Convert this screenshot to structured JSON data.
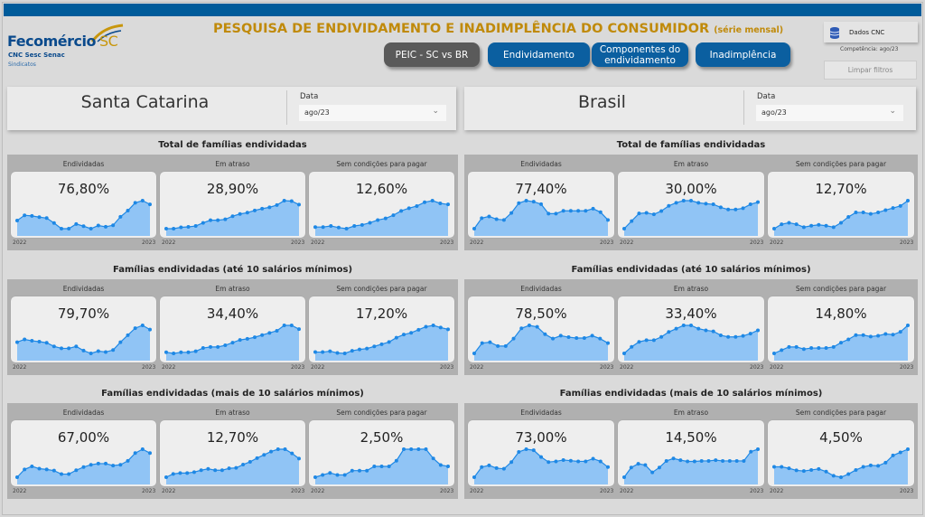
{
  "header": {
    "logo_brand": "Fecomércio",
    "logo_sc": "SC",
    "logo_sub": "CNC Sesc Senac",
    "logo_sind": "Sindicatos",
    "title": "PESQUISA DE ENDIVIDAMENTO E INADIMPLÊNCIA DO CONSUMIDOR",
    "title_suffix": "(série mensal)",
    "nav": [
      {
        "label": "PEIC - SC vs BR",
        "active": true
      },
      {
        "label": "Endividamento"
      },
      {
        "label": "Componentes do endividamento"
      },
      {
        "label": "Inadimplência"
      }
    ],
    "dados_label": "Dados CNC",
    "competencia_label": "Competência:",
    "competencia_value": "ago/23",
    "clear_label": "Limpar filtros"
  },
  "colors": {
    "accent": "#005b9a",
    "gold": "#c08a0a",
    "area": "#90c4f5",
    "line": "#1e88e5"
  },
  "panels": [
    {
      "region": "Santa Catarina",
      "date_label": "Data",
      "date_value": "ago/23",
      "sections": [
        {
          "title": "Total de famílias endividadas",
          "cards": [
            {
              "label": "Endividadas",
              "value": "76,80%",
              "start": "2022",
              "end": "2023",
              "trend": [
                38,
                55,
                53,
                49,
                46,
                30,
                12,
                12,
                27,
                20,
                12,
                22,
                18,
                23,
                50,
                70,
                95,
                102,
                90
              ]
            },
            {
              "label": "Em atraso",
              "value": "28,90%",
              "start": "2022",
              "end": "2023",
              "trend": [
                5,
                5,
                8,
                9,
                11,
                18,
                24,
                24,
                26,
                33,
                38,
                41,
                46,
                50,
                53,
                58,
                68,
                67,
                59
              ]
            },
            {
              "label": "Sem condições para pagar",
              "value": "12,60%",
              "start": "2022",
              "end": "2023",
              "trend": [
                20,
                20,
                22,
                19,
                17,
                22,
                24,
                28,
                33,
                36,
                42,
                50,
                55,
                59,
                66,
                69,
                64,
                62
              ]
            }
          ]
        },
        {
          "title": "Famílias endividadas (até 10 salários mínimos)",
          "cards": [
            {
              "label": "Endividadas",
              "value": "79,70%",
              "start": "2022",
              "end": "2023",
              "trend": [
                50,
                60,
                55,
                52,
                48,
                35,
                28,
                28,
                35,
                20,
                10,
                18,
                15,
                22,
                50,
                75,
                100,
                110,
                95
              ]
            },
            {
              "label": "Em atraso",
              "value": "34,40%",
              "start": "2022",
              "end": "2023",
              "trend": [
                12,
                10,
                12,
                12,
                14,
                20,
                22,
                22,
                25,
                30,
                35,
                37,
                40,
                44,
                48,
                52,
                62,
                62,
                55
              ]
            },
            {
              "label": "Sem condições para pagar",
              "value": "17,20%",
              "start": "2022",
              "end": "2023",
              "trend": [
                12,
                12,
                14,
                10,
                9,
                15,
                18,
                20,
                25,
                30,
                35,
                45,
                52,
                56,
                63,
                70,
                73,
                68,
                64
              ]
            }
          ]
        },
        {
          "title": "Famílias endividadas (mais de 10 salários mínimos)",
          "cards": [
            {
              "label": "Endividadas",
              "value": "67,00%",
              "start": "2022",
              "end": "2023",
              "trend": [
                20,
                40,
                48,
                42,
                40,
                37,
                28,
                28,
                38,
                46,
                52,
                55,
                55,
                50,
                52,
                62,
                82,
                92,
                82
              ]
            },
            {
              "label": "Em atraso",
              "value": "12,70%",
              "start": "2022",
              "end": "2023",
              "trend": [
                15,
                22,
                24,
                24,
                26,
                30,
                33,
                30,
                30,
                34,
                35,
                42,
                48,
                56,
                63,
                70,
                75,
                75,
                66,
                55
              ]
            },
            {
              "label": "Sem condições para pagar",
              "value": "2,50%",
              "start": "2022",
              "end": "2023",
              "trend": [
                5,
                12,
                18,
                12,
                12,
                25,
                25,
                25,
                38,
                38,
                38,
                55,
                90,
                90,
                90,
                90,
                62,
                42,
                38
              ]
            }
          ]
        }
      ]
    },
    {
      "region": "Brasil",
      "date_label": "Data",
      "date_value": "ago/23",
      "sections": [
        {
          "title": "Total de famílias endividadas",
          "cards": [
            {
              "label": "Endividadas",
              "value": "77,40%",
              "start": "2022",
              "end": "2023",
              "trend": [
                15,
                45,
                50,
                42,
                40,
                60,
                88,
                95,
                92,
                85,
                58,
                58,
                66,
                66,
                66,
                66,
                72,
                62,
                40
              ]
            },
            {
              "label": "Em atraso",
              "value": "30,00%",
              "start": "2022",
              "end": "2023",
              "trend": [
                5,
                30,
                55,
                57,
                52,
                63,
                80,
                90,
                97,
                97,
                90,
                87,
                85,
                75,
                68,
                68,
                72,
                85,
                92
              ]
            },
            {
              "label": "Sem condições para pagar",
              "value": "12,70%",
              "start": "2022",
              "end": "2023",
              "trend": [
                20,
                35,
                40,
                35,
                25,
                30,
                33,
                30,
                25,
                40,
                60,
                75,
                75,
                70,
                75,
                83,
                90,
                97,
                115
              ]
            }
          ]
        },
        {
          "title": "Famílias endividadas (até 10 salários mínimos)",
          "cards": [
            {
              "label": "Endividadas",
              "value": "78,50%",
              "start": "2022",
              "end": "2023",
              "trend": [
                10,
                45,
                48,
                35,
                35,
                60,
                95,
                105,
                100,
                75,
                60,
                70,
                65,
                62,
                62,
                70,
                60,
                45
              ]
            },
            {
              "label": "Em atraso",
              "value": "33,40%",
              "start": "2022",
              "end": "2023",
              "trend": [
                5,
                25,
                40,
                45,
                45,
                55,
                70,
                80,
                90,
                90,
                80,
                75,
                72,
                60,
                55,
                55,
                58,
                65,
                75
              ]
            },
            {
              "label": "Sem condições para pagar",
              "value": "14,80%",
              "start": "2022",
              "end": "2023",
              "trend": [
                10,
                25,
                40,
                40,
                30,
                35,
                35,
                35,
                40,
                60,
                75,
                95,
                95,
                88,
                92,
                100,
                97,
                110,
                140
              ]
            }
          ]
        },
        {
          "title": "Famílias endividadas (mais de 10 salários mínimos)",
          "cards": [
            {
              "label": "Endividadas",
              "value": "73,00%",
              "start": "2022",
              "end": "2023",
              "trend": [
                15,
                45,
                50,
                42,
                40,
                60,
                90,
                98,
                95,
                75,
                60,
                62,
                66,
                64,
                62,
                62,
                70,
                62,
                45
              ]
            },
            {
              "label": "Em atraso",
              "value": "14,50%",
              "start": "2022",
              "end": "2023",
              "trend": [
                5,
                45,
                60,
                55,
                25,
                45,
                72,
                82,
                75,
                70,
                70,
                72,
                72,
                75,
                72,
                72,
                72,
                72,
                110,
                120
              ]
            },
            {
              "label": "Sem condições para pagar",
              "value": "4,50%",
              "start": "2022",
              "end": "2023",
              "trend": [
                55,
                55,
                48,
                38,
                35,
                40,
                45,
                32,
                12,
                5,
                20,
                40,
                55,
                62,
                60,
                75,
                110,
                125,
                140
              ]
            }
          ]
        }
      ]
    }
  ]
}
